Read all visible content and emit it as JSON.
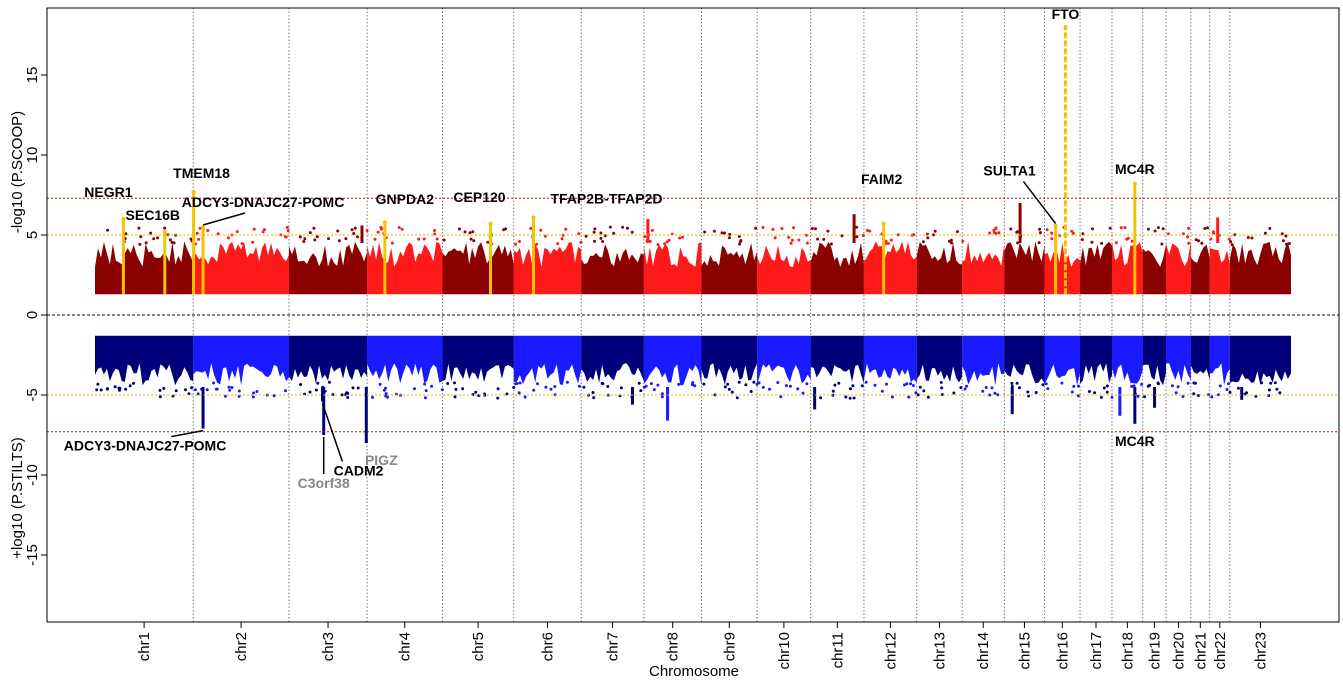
{
  "chart_data": {
    "type": "scatter",
    "subtype": "miami-manhattan",
    "xlabel": "Chromosome",
    "ylabel_top": "-log10 (P.SCOOP)",
    "ylabel_bottom": "+log10 (P.STILTS)",
    "ylim": [
      -20,
      20
    ],
    "yticks": [
      15,
      10,
      5,
      0,
      -5,
      -10,
      -15
    ],
    "grid": false,
    "legend": "none",
    "thresholds": {
      "genome_wide": 7.3,
      "suggestive": 5
    },
    "colors": {
      "top_dark": "#8b0000",
      "top_light": "#ff1a1a",
      "bottom_dark": "#00007a",
      "bottom_light": "#1a1aff",
      "highlight": "#f5c400",
      "genome_wide_line": "#cc0000",
      "suggestive_line": "#e0b000"
    },
    "chromosomes": [
      {
        "label": "chr1",
        "size": 249
      },
      {
        "label": "chr2",
        "size": 243
      },
      {
        "label": "chr3",
        "size": 198
      },
      {
        "label": "chr4",
        "size": 191
      },
      {
        "label": "chr5",
        "size": 181
      },
      {
        "label": "chr6",
        "size": 171
      },
      {
        "label": "chr7",
        "size": 159
      },
      {
        "label": "chr8",
        "size": 146
      },
      {
        "label": "chr9",
        "size": 141
      },
      {
        "label": "chr10",
        "size": 136
      },
      {
        "label": "chr11",
        "size": 135
      },
      {
        "label": "chr12",
        "size": 134
      },
      {
        "label": "chr13",
        "size": 115
      },
      {
        "label": "chr14",
        "size": 107
      },
      {
        "label": "chr15",
        "size": 102
      },
      {
        "label": "chr16",
        "size": 90
      },
      {
        "label": "chr17",
        "size": 81
      },
      {
        "label": "chr18",
        "size": 78
      },
      {
        "label": "chr19",
        "size": 59
      },
      {
        "label": "chr20",
        "size": 63
      },
      {
        "label": "chr21",
        "size": 48
      },
      {
        "label": "chr22",
        "size": 51
      },
      {
        "label": "chr23",
        "size": 155
      }
    ],
    "top_peaks": [
      {
        "gene": "NEGR1",
        "chr": "chr1",
        "pos": 72,
        "y": 6.0
      },
      {
        "gene": "SEC16B",
        "chr": "chr1",
        "pos": 177,
        "y": 5.2
      },
      {
        "gene": "TMEM18",
        "chr": "chr2",
        "pos": 1,
        "y": 7.7
      },
      {
        "gene": "ADCY3-DNAJC27-POMC",
        "chr": "chr2",
        "pos": 25,
        "y": 5.5
      },
      {
        "gene": "GNPDA2",
        "chr": "chr4",
        "pos": 45,
        "y": 5.8
      },
      {
        "gene": "CEP120",
        "chr": "chr5",
        "pos": 122,
        "y": 5.7
      },
      {
        "gene": "TFAP2B-TFAP2D",
        "chr": "chr6",
        "pos": 50,
        "y": 6.1
      },
      {
        "gene": "FAIM2",
        "chr": "chr12",
        "pos": 50,
        "y": 5.7
      },
      {
        "gene": "SULTA1",
        "chr": "chr16",
        "pos": 28,
        "y": 5.6
      },
      {
        "gene": "FTO",
        "chr": "chr16",
        "pos": 53,
        "y": 18.0
      },
      {
        "gene": "MC4R",
        "chr": "chr18",
        "pos": 58,
        "y": 8.2
      }
    ],
    "bottom_peaks": [
      {
        "gene": "ADCY3-DNAJC27-POMC",
        "chr": "chr2",
        "pos": 25,
        "y": -7.1
      },
      {
        "gene": "C3orf38",
        "chr": "chr3",
        "pos": 88,
        "y": -7.5
      },
      {
        "gene": "CADM2",
        "chr": "chr3",
        "pos": 85,
        "y": -5.4
      },
      {
        "gene": "PIGZ",
        "chr": "chr3",
        "pos": 196,
        "y": -8.0
      },
      {
        "gene": "MC4R",
        "chr": "chr18",
        "pos": 58,
        "y": -6.8
      }
    ],
    "other_points": [
      {
        "chr": "chr8",
        "pos": 10,
        "y": 6.0
      },
      {
        "chr": "chr11",
        "pos": 110,
        "y": 6.3
      },
      {
        "chr": "chr15",
        "pos": 40,
        "y": 7.0
      },
      {
        "chr": "chr22",
        "pos": 20,
        "y": 6.1
      },
      {
        "chr": "chr3",
        "pos": 185,
        "y": 5.6
      },
      {
        "chr": "chr7",
        "pos": 130,
        "y": -5.6
      },
      {
        "chr": "chr8",
        "pos": 60,
        "y": -6.6
      },
      {
        "chr": "chr11",
        "pos": 10,
        "y": -5.9
      },
      {
        "chr": "chr15",
        "pos": 20,
        "y": -6.2
      },
      {
        "chr": "chr18",
        "pos": 20,
        "y": -6.3
      },
      {
        "chr": "chr19",
        "pos": 30,
        "y": -5.8
      },
      {
        "chr": "chr23",
        "pos": 30,
        "y": -5.3
      }
    ]
  }
}
